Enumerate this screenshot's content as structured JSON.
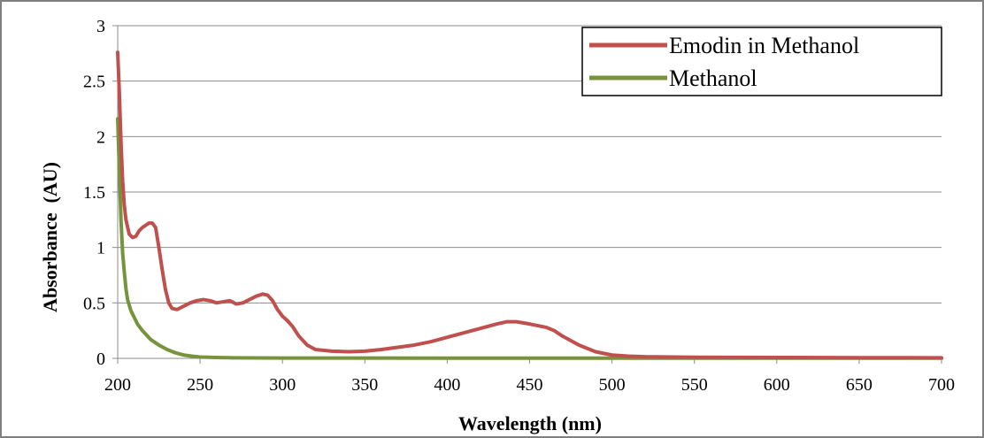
{
  "chart_data": {
    "type": "line",
    "title": "",
    "xlabel": "Wavelength (nm)",
    "ylabel": "Absorbance  (AU)",
    "xlim": [
      200,
      700
    ],
    "ylim": [
      0,
      3
    ],
    "x_ticks": [
      200,
      250,
      300,
      350,
      400,
      450,
      500,
      550,
      600,
      650,
      700
    ],
    "y_ticks": [
      0,
      0.5,
      1,
      1.5,
      2,
      2.5,
      3
    ],
    "x_tick_labels": [
      "200",
      "250",
      "300",
      "350",
      "400",
      "450",
      "500",
      "550",
      "600",
      "650",
      "700"
    ],
    "y_tick_labels": [
      "0",
      "0.5",
      "1",
      "1.5",
      "2",
      "2.5",
      "3"
    ],
    "grid": "horizontal",
    "legend_position": "top-right",
    "series": [
      {
        "name": "Emodin in Methanol",
        "color": "#c0504d",
        "x": [
          200,
          201,
          202,
          203,
          204,
          205,
          207,
          209,
          211,
          213,
          215,
          217,
          219,
          221,
          223,
          225,
          227,
          229,
          231,
          233,
          236,
          240,
          244,
          248,
          252,
          256,
          260,
          264,
          268,
          272,
          276,
          280,
          284,
          288,
          291,
          294,
          297,
          300,
          303,
          306,
          310,
          315,
          320,
          330,
          340,
          350,
          360,
          370,
          380,
          390,
          400,
          410,
          420,
          430,
          436,
          442,
          450,
          460,
          465,
          470,
          480,
          490,
          500,
          510,
          520,
          550,
          600,
          650,
          700
        ],
        "y": [
          2.76,
          2.4,
          1.95,
          1.6,
          1.38,
          1.25,
          1.12,
          1.09,
          1.1,
          1.15,
          1.18,
          1.2,
          1.22,
          1.22,
          1.18,
          1.0,
          0.8,
          0.62,
          0.5,
          0.45,
          0.44,
          0.47,
          0.5,
          0.52,
          0.53,
          0.52,
          0.5,
          0.51,
          0.52,
          0.49,
          0.5,
          0.53,
          0.56,
          0.58,
          0.57,
          0.52,
          0.44,
          0.38,
          0.34,
          0.29,
          0.2,
          0.12,
          0.08,
          0.065,
          0.06,
          0.065,
          0.08,
          0.1,
          0.12,
          0.15,
          0.19,
          0.23,
          0.27,
          0.31,
          0.33,
          0.33,
          0.31,
          0.28,
          0.25,
          0.2,
          0.12,
          0.06,
          0.03,
          0.02,
          0.015,
          0.01,
          0.008,
          0.006,
          0.005
        ]
      },
      {
        "name": "Methanol",
        "color": "#77933c",
        "x": [
          200,
          201,
          202,
          203,
          204,
          205,
          206,
          208,
          210,
          212,
          215,
          220,
          225,
          230,
          235,
          240,
          245,
          250,
          260,
          270,
          300,
          400,
          500,
          600,
          700
        ],
        "y": [
          2.16,
          1.7,
          1.25,
          0.95,
          0.78,
          0.63,
          0.53,
          0.43,
          0.37,
          0.31,
          0.25,
          0.17,
          0.12,
          0.08,
          0.05,
          0.03,
          0.02,
          0.012,
          0.008,
          0.005,
          0.003,
          0.002,
          0.002,
          0.002,
          0.002
        ]
      }
    ]
  }
}
